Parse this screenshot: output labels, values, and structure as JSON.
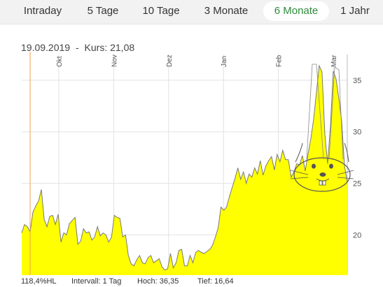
{
  "tabs": [
    {
      "label": "Intraday",
      "active": false
    },
    {
      "label": "5 Tage",
      "active": false
    },
    {
      "label": "10 Tage",
      "active": false
    },
    {
      "label": "3 Monate",
      "active": false
    },
    {
      "label": "6 Monate",
      "active": true
    },
    {
      "label": "1 Jahr",
      "active": false
    }
  ],
  "info": {
    "date": "19.09.2019",
    "separator": "-",
    "kurs_label": "Kurs:",
    "kurs_value": "21,08"
  },
  "footer": {
    "hl": "118,4%HL",
    "interval": "Intervall: 1 Tag",
    "high": "Hoch:  36,35",
    "low": "Tief:  16,64"
  },
  "colors": {
    "fill": "#ffff00",
    "line": "#7a7a7a",
    "grid": "#e2e2e2",
    "cursor": "#f0a050",
    "active_tab_text": "#2e8b3a"
  },
  "chart_data": {
    "type": "area",
    "x_ticks": [
      "Okt",
      "Nov",
      "Dez",
      "Jan",
      "Feb",
      "Mar"
    ],
    "y_ticks": [
      20,
      25,
      30,
      35
    ],
    "ylim": [
      16.1,
      37.5
    ],
    "xlim": [
      0,
      116
    ],
    "grid": true,
    "y_axis_position": "right",
    "cursor_x": 3,
    "values": [
      20.2,
      21.0,
      20.8,
      20.3,
      22.2,
      22.8,
      23.3,
      24.4,
      21.5,
      20.8,
      21.8,
      21.9,
      21.0,
      22.0,
      19.3,
      20.2,
      20.0,
      21.1,
      21.4,
      21.7,
      19.1,
      19.4,
      20.6,
      20.2,
      20.3,
      19.5,
      19.8,
      20.8,
      19.9,
      20.2,
      20.0,
      19.3,
      19.8,
      21.9,
      21.7,
      21.6,
      19.8,
      20.0,
      18.0,
      17.2,
      17.0,
      17.6,
      18.0,
      17.3,
      17.2,
      17.8,
      18.0,
      17.3,
      17.5,
      17.7,
      16.9,
      16.6,
      16.7,
      18.2,
      16.8,
      17.3,
      18.5,
      18.6,
      17.0,
      17.0,
      18.0,
      17.3,
      18.3,
      18.5,
      18.3,
      18.2,
      18.4,
      18.6,
      19.0,
      19.8,
      20.7,
      22.7,
      22.4,
      22.7,
      23.7,
      24.6,
      25.5,
      26.5,
      25.4,
      26.1,
      25.0,
      25.9,
      25.6,
      26.5,
      25.9,
      27.2,
      25.8,
      26.7,
      27.2,
      27.6,
      26.3,
      27.8,
      27.1,
      28.2,
      27.3,
      27.3,
      25.6,
      26.1,
      26.9,
      26.8,
      27.7,
      26.2,
      27.8,
      29.3,
      31.2,
      33.8,
      36.4,
      35.8,
      29.8,
      26.9,
      30.5,
      35.9,
      35.1,
      33.2,
      31.0,
      26.7,
      25.1
    ]
  }
}
